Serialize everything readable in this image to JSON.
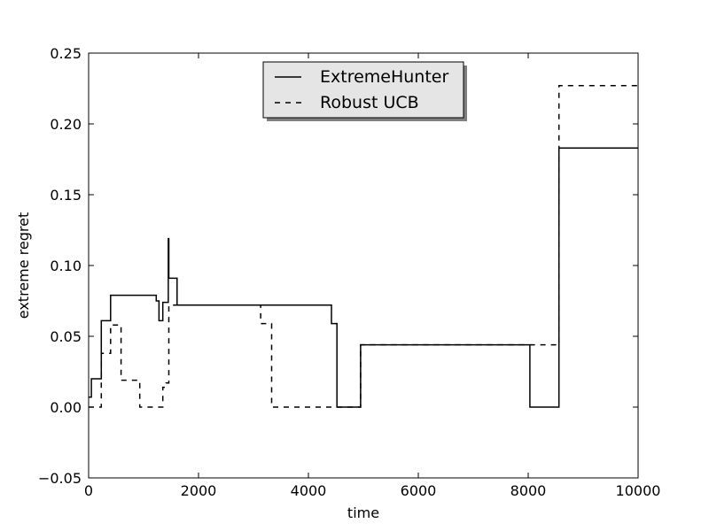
{
  "chart_data": {
    "type": "line",
    "title": "",
    "xlabel": "time",
    "ylabel": "extreme regret",
    "xlim": [
      0,
      10000
    ],
    "ylim": [
      -0.05,
      0.25
    ],
    "xticks": [
      0,
      2000,
      4000,
      6000,
      8000,
      10000
    ],
    "xtick_labels": [
      "0",
      "2000",
      "4000",
      "6000",
      "8000",
      "10000"
    ],
    "yticks": [
      -0.05,
      0.0,
      0.05,
      0.1,
      0.15,
      0.2,
      0.25
    ],
    "ytick_labels": [
      "−0.05",
      "0.00",
      "0.05",
      "0.10",
      "0.15",
      "0.20",
      "0.25"
    ],
    "grid": false,
    "legend_position": "top-center",
    "series": [
      {
        "name": "ExtremeHunter",
        "style": "solid",
        "color": "#000000",
        "x": [
          0,
          50,
          50,
          230,
          230,
          400,
          400,
          1230,
          1230,
          1280,
          1280,
          1350,
          1350,
          1450,
          1450,
          1460,
          1460,
          1480,
          1480,
          1610,
          1610,
          4420,
          4420,
          4520,
          4520,
          4950,
          4950,
          8030,
          8030,
          8560,
          8560,
          10000
        ],
        "y": [
          0.007,
          0.007,
          0.02,
          0.02,
          0.061,
          0.061,
          0.079,
          0.079,
          0.075,
          0.075,
          0.061,
          0.061,
          0.074,
          0.074,
          0.119,
          0.119,
          0.091,
          0.091,
          0.091,
          0.091,
          0.072,
          0.072,
          0.059,
          0.059,
          0.0,
          0.0,
          0.044,
          0.044,
          0.0,
          0.0,
          0.183,
          0.183
        ]
      },
      {
        "name": "Robust UCB",
        "style": "dashed",
        "color": "#000000",
        "x": [
          0,
          230,
          230,
          400,
          400,
          590,
          590,
          930,
          930,
          1350,
          1350,
          1410,
          1410,
          1460,
          1460,
          3130,
          3130,
          3330,
          3330,
          4520,
          4520,
          4950,
          4950,
          8560,
          8560,
          10000
        ],
        "y": [
          0.0,
          0.0,
          0.038,
          0.038,
          0.058,
          0.058,
          0.019,
          0.019,
          0.0,
          0.0,
          0.014,
          0.014,
          0.017,
          0.017,
          0.072,
          0.072,
          0.059,
          0.059,
          0.0,
          0.0,
          0.0,
          0.0,
          0.044,
          0.044,
          0.227,
          0.227
        ]
      }
    ]
  }
}
